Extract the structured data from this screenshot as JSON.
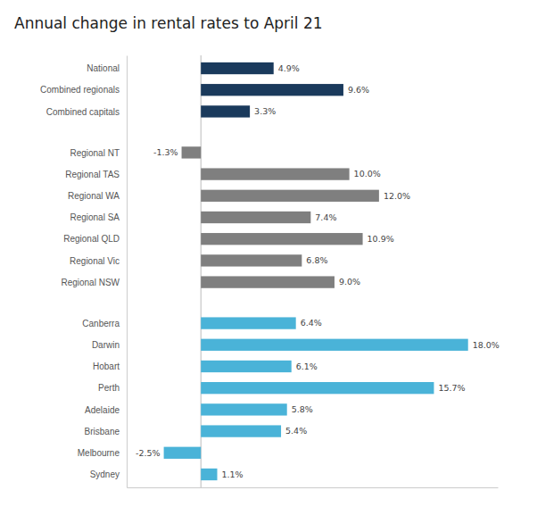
{
  "chart_data": {
    "type": "bar",
    "orientation": "horizontal",
    "title": "Annual change in rental rates to April 21",
    "categories": [
      "National",
      "Combined regionals",
      "Combined capitals",
      "Regional NT",
      "Regional TAS",
      "Regional WA",
      "Regional SA",
      "Regional QLD",
      "Regional Vic",
      "Regional NSW",
      "Canberra",
      "Darwin",
      "Hobart",
      "Perth",
      "Adelaide",
      "Brisbane",
      "Melbourne",
      "Sydney"
    ],
    "values": [
      4.9,
      9.6,
      3.3,
      -1.3,
      10.0,
      12.0,
      7.4,
      10.9,
      6.8,
      9.0,
      6.4,
      18.0,
      6.1,
      15.7,
      5.8,
      5.4,
      -2.5,
      1.1
    ],
    "value_labels": [
      "4.9%",
      "9.6%",
      "3.3%",
      "-1.3%",
      "10.0%",
      "12.0%",
      "7.4%",
      "10.9%",
      "6.8%",
      "9.0%",
      "6.4%",
      "18.0%",
      "6.1%",
      "15.7%",
      "5.8%",
      "5.4%",
      "-2.5%",
      "1.1%"
    ],
    "colors": [
      "#1a3a5c",
      "#1a3a5c",
      "#1a3a5c",
      "#7f7f7f",
      "#7f7f7f",
      "#7f7f7f",
      "#7f7f7f",
      "#7f7f7f",
      "#7f7f7f",
      "#7f7f7f",
      "#4ab3d8",
      "#4ab3d8",
      "#4ab3d8",
      "#4ab3d8",
      "#4ab3d8",
      "#4ab3d8",
      "#4ab3d8",
      "#4ab3d8"
    ],
    "xlim": [
      -5,
      20
    ],
    "data_labels": true,
    "tick_labels": "y"
  }
}
